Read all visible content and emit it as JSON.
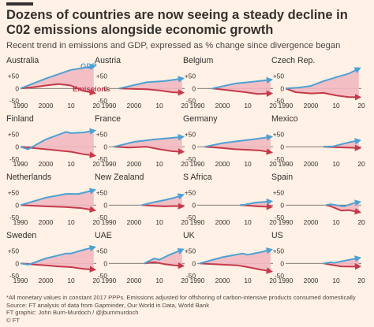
{
  "header": {
    "title": "Dozens of countries are now seeing a steady decline in C02 emissions alongside economic growth",
    "subtitle": "Recent trend in emissions and GDP, expressed as % change since divergence began"
  },
  "footer": {
    "note": "*All monetary values in constant 2017 PPPs. Emissions adjusted for offshoring of carbon-intensive products consumed domestically",
    "source": "Source: FT analysis of data from Gapminder, Our World in Data, World Bank",
    "credit": "FT graphic: John Burn-Murdoch / @jburnmurdoch",
    "brand": "© FT"
  },
  "colors": {
    "gdp": "#4ea1d3",
    "emissions": "#c53a4b",
    "fill": "#f2b9c0",
    "background": "#fff1e5"
  },
  "labels": {
    "gdp": "GDP",
    "emissions": "Emissions"
  },
  "chart_data": {
    "type": "line",
    "small_multiples": true,
    "ylim": [
      -50,
      90
    ],
    "yticks": [
      "+50",
      "0",
      "-50"
    ],
    "ytick_values": [
      50,
      0,
      -50
    ],
    "xlim": [
      1990,
      2020
    ],
    "xticks": [
      "1990",
      "2000",
      "10",
      "20"
    ],
    "xtick_values": [
      1990,
      2000,
      2010,
      2020
    ],
    "series_names": [
      "GDP",
      "Emissions"
    ],
    "panels": [
      {
        "country": "Australia",
        "start": 1990,
        "gdp": [
          [
            1990,
            0
          ],
          [
            2000,
            40
          ],
          [
            2010,
            75
          ],
          [
            2019,
            90
          ]
        ],
        "emissions": [
          [
            1990,
            0
          ],
          [
            1995,
            5
          ],
          [
            2000,
            12
          ],
          [
            2005,
            18
          ],
          [
            2010,
            12
          ],
          [
            2015,
            -10
          ],
          [
            2019,
            -18
          ]
        ]
      },
      {
        "country": "Austria",
        "start": 1994,
        "gdp": [
          [
            1994,
            0
          ],
          [
            2005,
            25
          ],
          [
            2012,
            30
          ],
          [
            2019,
            40
          ]
        ],
        "emissions": [
          [
            1994,
            0
          ],
          [
            2000,
            -2
          ],
          [
            2005,
            -3
          ],
          [
            2010,
            -8
          ],
          [
            2015,
            -15
          ],
          [
            2019,
            -17
          ]
        ]
      },
      {
        "country": "Belgium",
        "start": 1996,
        "gdp": [
          [
            1996,
            0
          ],
          [
            2005,
            20
          ],
          [
            2012,
            27
          ],
          [
            2019,
            35
          ]
        ],
        "emissions": [
          [
            1996,
            0
          ],
          [
            2003,
            -8
          ],
          [
            2009,
            -15
          ],
          [
            2014,
            -22
          ],
          [
            2019,
            -20
          ]
        ]
      },
      {
        "country": "Czech Rep.",
        "start": 1990,
        "gdp": [
          [
            1990,
            0
          ],
          [
            1995,
            3
          ],
          [
            2000,
            10
          ],
          [
            2005,
            30
          ],
          [
            2010,
            45
          ],
          [
            2015,
            60
          ],
          [
            2019,
            80
          ]
        ],
        "emissions": [
          [
            1990,
            0
          ],
          [
            1994,
            -15
          ],
          [
            2000,
            -20
          ],
          [
            2005,
            -18
          ],
          [
            2010,
            -28
          ],
          [
            2015,
            -35
          ],
          [
            2019,
            -35
          ]
        ]
      },
      {
        "country": "Finland",
        "start": 1990,
        "gdp": [
          [
            1990,
            0
          ],
          [
            1993,
            -10
          ],
          [
            2000,
            30
          ],
          [
            2008,
            60
          ],
          [
            2010,
            55
          ],
          [
            2015,
            58
          ],
          [
            2019,
            65
          ]
        ],
        "emissions": [
          [
            1990,
            0
          ],
          [
            1995,
            -5
          ],
          [
            2000,
            -10
          ],
          [
            2005,
            -15
          ],
          [
            2010,
            -20
          ],
          [
            2015,
            -30
          ],
          [
            2019,
            -35
          ]
        ]
      },
      {
        "country": "France",
        "start": 1992,
        "gdp": [
          [
            1992,
            0
          ],
          [
            2000,
            20
          ],
          [
            2008,
            30
          ],
          [
            2012,
            33
          ],
          [
            2019,
            40
          ]
        ],
        "emissions": [
          [
            1992,
            0
          ],
          [
            1998,
            -3
          ],
          [
            2005,
            0
          ],
          [
            2010,
            -10
          ],
          [
            2015,
            -18
          ],
          [
            2019,
            -20
          ]
        ]
      },
      {
        "country": "Germany",
        "start": 1993,
        "gdp": [
          [
            1993,
            0
          ],
          [
            2000,
            15
          ],
          [
            2008,
            25
          ],
          [
            2012,
            30
          ],
          [
            2019,
            40
          ]
        ],
        "emissions": [
          [
            1993,
            0
          ],
          [
            2000,
            -5
          ],
          [
            2005,
            -10
          ],
          [
            2010,
            -12
          ],
          [
            2015,
            -15
          ],
          [
            2019,
            -22
          ]
        ]
      },
      {
        "country": "Mexico",
        "start": 2005,
        "gdp": [
          [
            2005,
            0
          ],
          [
            2009,
            2
          ],
          [
            2012,
            10
          ],
          [
            2016,
            20
          ],
          [
            2019,
            25
          ]
        ],
        "emissions": [
          [
            2005,
            0
          ],
          [
            2010,
            -2
          ],
          [
            2014,
            -3
          ],
          [
            2019,
            -5
          ]
        ]
      },
      {
        "country": "Netherlands",
        "start": 1990,
        "gdp": [
          [
            1990,
            0
          ],
          [
            2000,
            30
          ],
          [
            2008,
            45
          ],
          [
            2013,
            45
          ],
          [
            2019,
            60
          ]
        ],
        "emissions": [
          [
            1990,
            0
          ],
          [
            1996,
            -3
          ],
          [
            2000,
            -5
          ],
          [
            2008,
            -8
          ],
          [
            2014,
            -12
          ],
          [
            2019,
            -20
          ]
        ]
      },
      {
        "country": "New Zealand",
        "start": 2003,
        "gdp": [
          [
            2003,
            0
          ],
          [
            2008,
            12
          ],
          [
            2012,
            20
          ],
          [
            2016,
            30
          ],
          [
            2019,
            40
          ]
        ],
        "emissions": [
          [
            2003,
            0
          ],
          [
            2008,
            -3
          ],
          [
            2012,
            -5
          ],
          [
            2016,
            -4
          ],
          [
            2019,
            -5
          ]
        ]
      },
      {
        "country": "S Africa",
        "start": 2007,
        "gdp": [
          [
            2007,
            0
          ],
          [
            2009,
            2
          ],
          [
            2013,
            10
          ],
          [
            2019,
            15
          ]
        ],
        "emissions": [
          [
            2007,
            0
          ],
          [
            2010,
            -2
          ],
          [
            2014,
            -5
          ],
          [
            2019,
            -7
          ]
        ]
      },
      {
        "country": "Spain",
        "start": 2006,
        "gdp": [
          [
            2006,
            0
          ],
          [
            2008,
            3
          ],
          [
            2013,
            -5
          ],
          [
            2017,
            8
          ],
          [
            2019,
            12
          ]
        ],
        "emissions": [
          [
            2006,
            0
          ],
          [
            2008,
            -5
          ],
          [
            2012,
            -22
          ],
          [
            2015,
            -20
          ],
          [
            2019,
            -28
          ]
        ]
      },
      {
        "country": "Sweden",
        "start": 1990,
        "gdp": [
          [
            1990,
            0
          ],
          [
            1993,
            -5
          ],
          [
            2000,
            20
          ],
          [
            2008,
            40
          ],
          [
            2010,
            40
          ],
          [
            2015,
            55
          ],
          [
            2019,
            65
          ]
        ],
        "emissions": [
          [
            1990,
            0
          ],
          [
            1996,
            -5
          ],
          [
            2000,
            -8
          ],
          [
            2005,
            -12
          ],
          [
            2010,
            -15
          ],
          [
            2015,
            -22
          ],
          [
            2019,
            -25
          ]
        ]
      },
      {
        "country": "UAE",
        "start": 2004,
        "gdp": [
          [
            2004,
            0
          ],
          [
            2008,
            20
          ],
          [
            2010,
            15
          ],
          [
            2014,
            35
          ],
          [
            2019,
            55
          ]
        ],
        "emissions": [
          [
            2004,
            0
          ],
          [
            2008,
            5
          ],
          [
            2012,
            -3
          ],
          [
            2016,
            -8
          ],
          [
            2019,
            -10
          ]
        ]
      },
      {
        "country": "UK",
        "start": 1991,
        "gdp": [
          [
            1991,
            0
          ],
          [
            2000,
            25
          ],
          [
            2008,
            40
          ],
          [
            2010,
            35
          ],
          [
            2015,
            45
          ],
          [
            2019,
            55
          ]
        ],
        "emissions": [
          [
            1991,
            0
          ],
          [
            2000,
            -5
          ],
          [
            2006,
            -8
          ],
          [
            2010,
            -15
          ],
          [
            2015,
            -25
          ],
          [
            2019,
            -32
          ]
        ]
      },
      {
        "country": "US",
        "start": 2005,
        "gdp": [
          [
            2005,
            0
          ],
          [
            2008,
            5
          ],
          [
            2009,
            2
          ],
          [
            2014,
            12
          ],
          [
            2019,
            22
          ]
        ],
        "emissions": [
          [
            2005,
            0
          ],
          [
            2009,
            -7
          ],
          [
            2012,
            -12
          ],
          [
            2016,
            -13
          ],
          [
            2019,
            -12
          ]
        ]
      }
    ]
  }
}
